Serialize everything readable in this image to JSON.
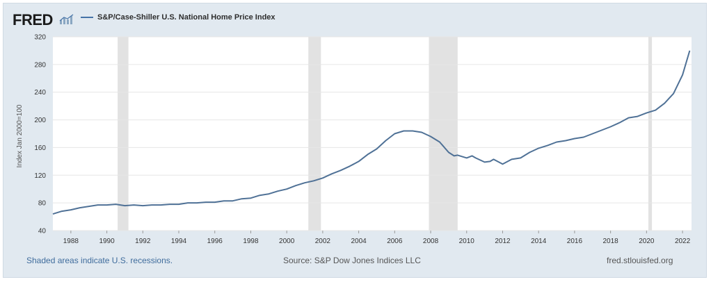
{
  "header": {
    "logo_text": "FRED",
    "series_title": "S&P/Case-Shiller U.S. National Home Price Index"
  },
  "footer": {
    "recession_note": "Shaded areas indicate U.S. recessions.",
    "source": "Source: S&P Dow Jones Indices LLC",
    "site": "fred.stlouisfed.org"
  },
  "colors": {
    "line": "#4f7196",
    "recession": "#e2e2e2",
    "plot_background": "#ffffff",
    "frame_background": "#e1e9f0"
  },
  "chart_data": {
    "type": "line",
    "title": "S&P/Case-Shiller U.S. National Home Price Index",
    "xlabel": "",
    "ylabel": "Index Jan 2000=100",
    "xlim": [
      1987.0,
      2022.5
    ],
    "ylim": [
      40,
      320
    ],
    "yticks": [
      40,
      80,
      120,
      160,
      200,
      240,
      280,
      320
    ],
    "xticks": [
      1988,
      1990,
      1992,
      1994,
      1996,
      1998,
      2000,
      2002,
      2004,
      2006,
      2008,
      2010,
      2012,
      2014,
      2016,
      2018,
      2020,
      2022
    ],
    "grid": true,
    "recessions": [
      [
        1990.6,
        1991.2
      ],
      [
        2001.2,
        2001.9
      ],
      [
        2007.9,
        2009.5
      ],
      [
        2020.1,
        2020.3
      ]
    ],
    "series": [
      {
        "name": "S&P/Case-Shiller U.S. National Home Price Index",
        "x": [
          1987.0,
          1987.5,
          1988.0,
          1988.5,
          1989.0,
          1989.5,
          1990.0,
          1990.5,
          1991.0,
          1991.5,
          1992.0,
          1992.5,
          1993.0,
          1993.5,
          1994.0,
          1994.5,
          1995.0,
          1995.5,
          1996.0,
          1996.5,
          1997.0,
          1997.5,
          1998.0,
          1998.5,
          1999.0,
          1999.5,
          2000.0,
          2000.5,
          2001.0,
          2001.5,
          2002.0,
          2002.5,
          2003.0,
          2003.5,
          2004.0,
          2004.5,
          2005.0,
          2005.5,
          2006.0,
          2006.5,
          2007.0,
          2007.5,
          2008.0,
          2008.5,
          2009.0,
          2009.3,
          2009.5,
          2010.0,
          2010.3,
          2010.5,
          2011.0,
          2011.3,
          2011.5,
          2012.0,
          2012.5,
          2013.0,
          2013.5,
          2014.0,
          2014.5,
          2015.0,
          2015.5,
          2016.0,
          2016.5,
          2017.0,
          2017.5,
          2018.0,
          2018.5,
          2019.0,
          2019.5,
          2020.0,
          2020.5,
          2021.0,
          2021.5,
          2022.0,
          2022.4
        ],
        "y": [
          64,
          68,
          70,
          73,
          75,
          77,
          77,
          78,
          76,
          77,
          76,
          77,
          77,
          78,
          78,
          80,
          80,
          81,
          81,
          83,
          83,
          86,
          87,
          91,
          93,
          97,
          100,
          105,
          109,
          112,
          116,
          122,
          127,
          133,
          140,
          150,
          158,
          170,
          180,
          184,
          184,
          182,
          176,
          168,
          153,
          148,
          149,
          145,
          148,
          145,
          139,
          140,
          143,
          136,
          143,
          145,
          153,
          159,
          163,
          168,
          170,
          173,
          175,
          180,
          185,
          190,
          196,
          203,
          205,
          210,
          214,
          224,
          238,
          265,
          300
        ]
      }
    ]
  }
}
